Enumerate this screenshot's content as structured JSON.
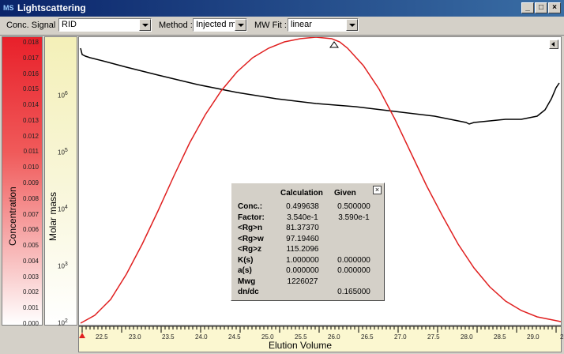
{
  "window": {
    "title": "Lightscattering",
    "badge": "MS"
  },
  "toolbar": {
    "conc_label": "Conc. Signal :",
    "conc_value": "RID",
    "method_label": "Method :",
    "method_value": "Injected ma:",
    "mwfit_label": "MW Fit :",
    "mwfit_value": "linear"
  },
  "conc_axis": {
    "title": "Concentration",
    "ticks": [
      "0.018",
      "0.017",
      "0.016",
      "0.015",
      "0.014",
      "0.013",
      "0.012",
      "0.011",
      "0.010",
      "0.009",
      "0.008",
      "0.007",
      "0.006",
      "0.005",
      "0.004",
      "0.003",
      "0.002",
      "0.001",
      "0.000"
    ]
  },
  "molar_axis": {
    "title": "Molar mass",
    "ticks": [
      {
        "base": "10",
        "exp": "6"
      },
      {
        "base": "10",
        "exp": "5"
      },
      {
        "base": "10",
        "exp": "4"
      },
      {
        "base": "10",
        "exp": "3"
      },
      {
        "base": "10",
        "exp": "2"
      }
    ]
  },
  "x_axis": {
    "label": "Elution Volume",
    "ticks": [
      "22.5",
      "23.0",
      "23.5",
      "24.0",
      "24.5",
      "25.0",
      "25.5",
      "26.0",
      "26.5",
      "27.0",
      "27.5",
      "28.0",
      "28.5",
      "29.0",
      "23."
    ]
  },
  "results": {
    "header_calc": "Calculation",
    "header_given": "Given",
    "close": "×",
    "rows": [
      {
        "key": "Conc.:",
        "calc": "0.499638",
        "given": "0.500000"
      },
      {
        "key": "Factor:",
        "calc": "3.540e-1",
        "given": "3.590e-1"
      },
      {
        "key": "<Rg>n",
        "calc": "81.37370",
        "given": ""
      },
      {
        "key": "<Rg>w",
        "calc": "97.19460",
        "given": ""
      },
      {
        "key": "<Rg>z",
        "calc": "115.2096",
        "given": ""
      },
      {
        "key": "K(s)",
        "calc": "1.000000",
        "given": "0.000000"
      },
      {
        "key": "a(s)",
        "calc": "0.000000",
        "given": "0.000000"
      },
      {
        "key": "Mwg",
        "calc": "1226027",
        "given": ""
      },
      {
        "key": "dn/dc",
        "calc": "",
        "given": "0.165000"
      }
    ]
  },
  "colors": {
    "concentration_curve": "#e02020",
    "molar_curve": "#000000"
  }
}
